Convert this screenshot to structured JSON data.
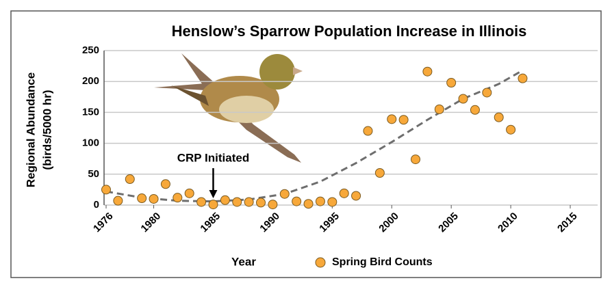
{
  "chart_data": {
    "type": "scatter",
    "title": "Henslow’s Sparrow Population Increase in Illinois",
    "xlabel": "Year",
    "ylabel": [
      "Regional Abundance",
      "(birds/5000 hr)"
    ],
    "annotation": {
      "text": "CRP Initiated",
      "x": 1985
    },
    "xlim": [
      1976,
      2017.3
    ],
    "xticks": [
      1976,
      1980,
      1985,
      1990,
      1995,
      2000,
      2005,
      2010,
      2015
    ],
    "ylim": [
      0,
      250
    ],
    "yticks": [
      0,
      50,
      100,
      150,
      200,
      250
    ],
    "grid": true,
    "series": [
      {
        "name": "Spring Bird Counts",
        "color": "#f7a83a",
        "x": [
          1976,
          1977,
          1978,
          1979,
          1980,
          1981,
          1982,
          1983,
          1984,
          1985,
          1986,
          1987,
          1988,
          1989,
          1990,
          1991,
          1992,
          1993,
          1994,
          1995,
          1996,
          1997,
          1998,
          1999,
          2000,
          2001,
          2002,
          2003,
          2004,
          2005,
          2006,
          2007,
          2008,
          2009,
          2010,
          2011
        ],
        "values": [
          25,
          7,
          42,
          11,
          10,
          34,
          12,
          19,
          5,
          1,
          8,
          5,
          5,
          4,
          1,
          18,
          6,
          2,
          6,
          5,
          19,
          15,
          120,
          52,
          139,
          138,
          74,
          216,
          155,
          198,
          172,
          154,
          182,
          142,
          122,
          205
        ]
      }
    ],
    "trend": {
      "color": "#6e6e6e",
      "x": [
        1976,
        1979,
        1982,
        1985,
        1988,
        1991,
        1994,
        1997,
        2000,
        2003,
        2006,
        2009,
        2011
      ],
      "values": [
        22,
        12,
        7,
        6,
        9,
        18,
        38,
        68,
        102,
        138,
        172,
        196,
        218
      ]
    }
  }
}
